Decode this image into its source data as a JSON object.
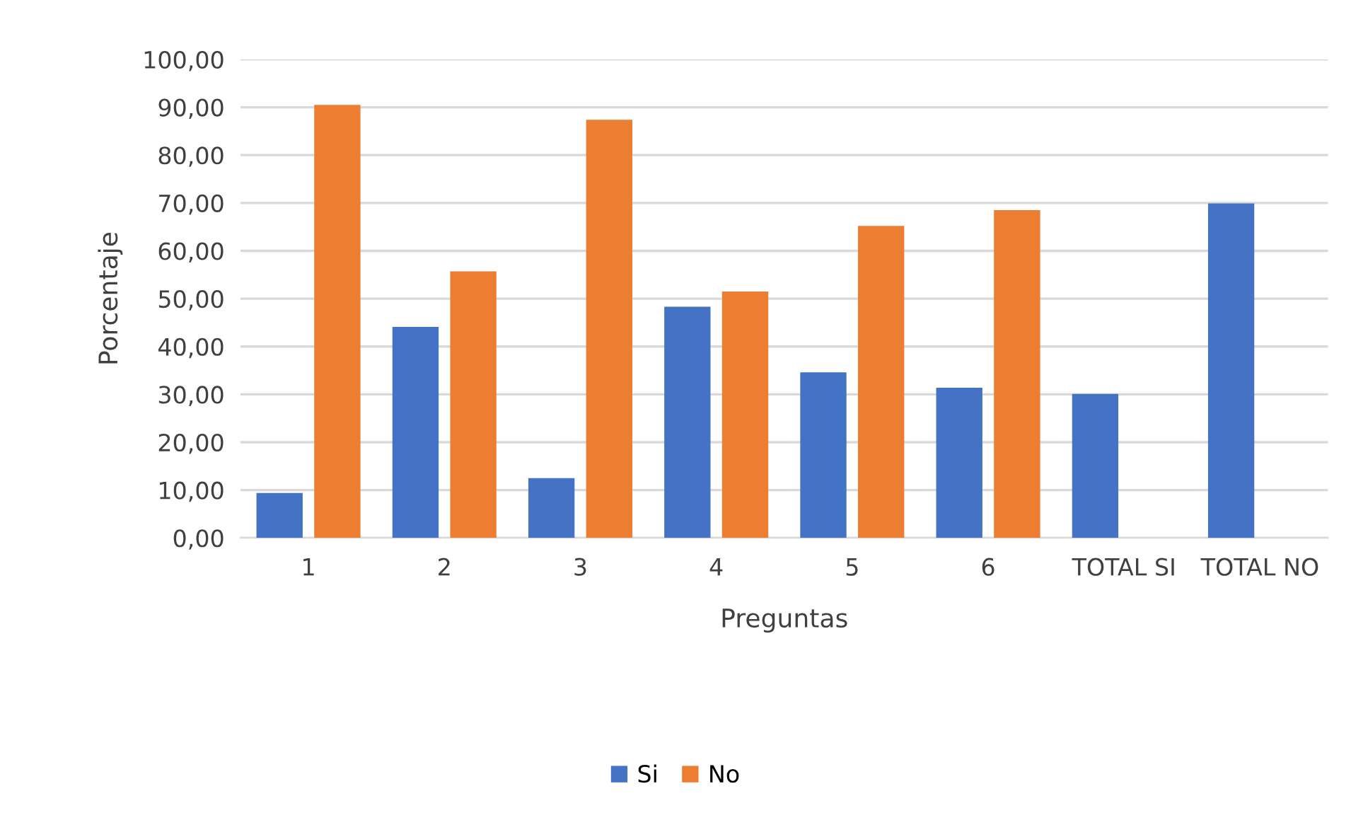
{
  "chart_data": {
    "type": "bar",
    "xlabel": "Preguntas",
    "ylabel": "Porcentaje",
    "categories": [
      "1",
      "2",
      "3",
      "4",
      "5",
      "6",
      "TOTAL SI",
      "TOTAL NO"
    ],
    "series": [
      {
        "name": "Si",
        "color": "#4472c4",
        "values": [
          9.4,
          44.1,
          12.5,
          48.3,
          34.6,
          31.4,
          30.1,
          69.9
        ]
      },
      {
        "name": "No",
        "color": "#ed7d31",
        "values": [
          90.5,
          55.7,
          87.4,
          51.5,
          65.2,
          68.5,
          null,
          null
        ]
      }
    ],
    "ylim": [
      0,
      100
    ],
    "yticks": [
      {
        "value": 0,
        "label": "0,00"
      },
      {
        "value": 10,
        "label": "10,00"
      },
      {
        "value": 20,
        "label": "20,00"
      },
      {
        "value": 30,
        "label": "30,00"
      },
      {
        "value": 40,
        "label": "40,00"
      },
      {
        "value": 50,
        "label": "50,00"
      },
      {
        "value": 60,
        "label": "60,00"
      },
      {
        "value": 70,
        "label": "70,00"
      },
      {
        "value": 80,
        "label": "80,00"
      },
      {
        "value": 90,
        "label": "90,00"
      },
      {
        "value": 100,
        "label": "100,00"
      }
    ],
    "grid": "y",
    "legend": "bottom"
  }
}
